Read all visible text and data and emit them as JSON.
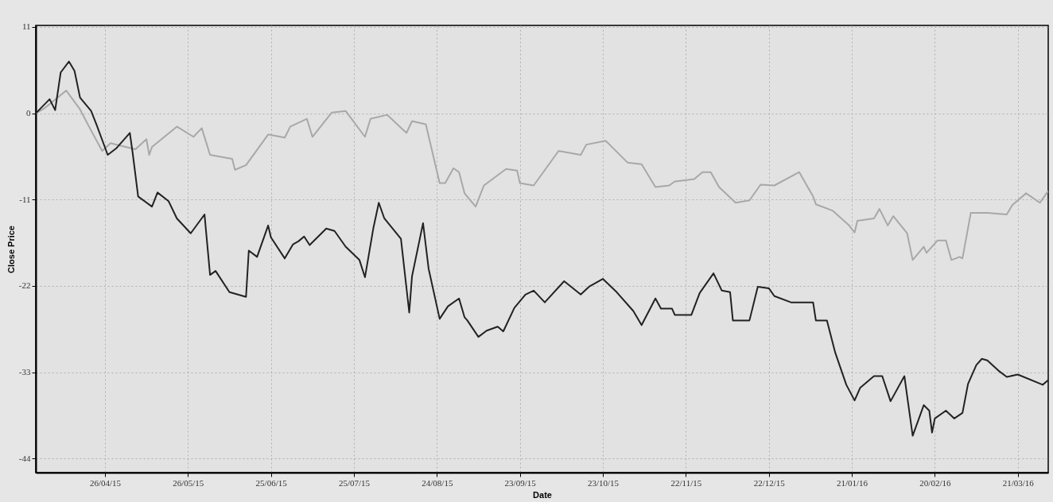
{
  "chart_data": {
    "type": "line",
    "xlabel": "Date",
    "ylabel": "Close Price",
    "xlim": [
      "2015-04-01",
      "2016-04-01"
    ],
    "ylim": [
      -45.8,
      11.2
    ],
    "yticks": [
      11,
      0,
      -11,
      -22,
      -33,
      -44
    ],
    "xticks": [
      {
        "value": "2015-04-26",
        "label": "26/04/15"
      },
      {
        "value": "2015-05-26",
        "label": "26/05/15"
      },
      {
        "value": "2015-06-25",
        "label": "25/06/15"
      },
      {
        "value": "2015-07-25",
        "label": "25/07/15"
      },
      {
        "value": "2015-08-24",
        "label": "24/08/15"
      },
      {
        "value": "2015-09-23",
        "label": "23/09/15"
      },
      {
        "value": "2015-10-23",
        "label": "23/10/15"
      },
      {
        "value": "2015-11-22",
        "label": "22/11/15"
      },
      {
        "value": "2015-12-22",
        "label": "22/12/15"
      },
      {
        "value": "2016-01-21",
        "label": "21/01/16"
      },
      {
        "value": "2016-02-20",
        "label": "20/02/16"
      },
      {
        "value": "2016-03-21",
        "label": "21/03/16"
      }
    ],
    "grid": true,
    "legend": false,
    "line_style": "solid",
    "marker": "none",
    "series": [
      {
        "color": "#a8a8a8",
        "x": [
          "2015-04-01",
          "2015-04-04",
          "2015-04-12",
          "2015-04-17",
          "2015-04-21",
          "2015-04-25",
          "2015-04-28",
          "2015-05-07",
          "2015-05-11",
          "2015-05-12",
          "2015-05-13",
          "2015-05-22",
          "2015-05-28",
          "2015-05-31",
          "2015-06-03",
          "2015-06-11",
          "2015-06-12",
          "2015-06-16",
          "2015-06-24",
          "2015-06-30",
          "2015-07-02",
          "2015-07-08",
          "2015-07-10",
          "2015-07-17",
          "2015-07-22",
          "2015-07-29",
          "2015-07-31",
          "2015-08-06",
          "2015-08-13",
          "2015-08-15",
          "2015-08-20",
          "2015-08-25",
          "2015-08-27",
          "2015-08-30",
          "2015-09-01",
          "2015-09-03",
          "2015-09-07",
          "2015-09-10",
          "2015-09-18",
          "2015-09-22",
          "2015-09-23",
          "2015-09-28",
          "2015-10-07",
          "2015-10-15",
          "2015-10-17",
          "2015-10-24",
          "2015-11-01",
          "2015-11-06",
          "2015-11-11",
          "2015-11-16",
          "2015-11-18",
          "2015-11-25",
          "2015-11-28",
          "2015-12-01",
          "2015-12-04",
          "2015-12-10",
          "2015-12-15",
          "2015-12-19",
          "2015-12-24",
          "2016-01-02",
          "2016-01-07",
          "2016-01-08",
          "2016-01-14",
          "2016-01-20",
          "2016-01-22",
          "2016-01-23",
          "2016-01-29",
          "2016-01-31",
          "2016-02-03",
          "2016-02-05",
          "2016-02-10",
          "2016-02-12",
          "2016-02-16",
          "2016-02-17",
          "2016-02-21",
          "2016-02-24",
          "2016-02-26",
          "2016-02-29",
          "2016-03-01",
          "2016-03-04",
          "2016-03-10",
          "2016-03-17",
          "2016-03-19",
          "2016-03-24",
          "2016-03-29",
          "2016-04-01"
        ],
        "values": [
          0,
          0.6,
          2.9,
          0.5,
          -2.2,
          -4.8,
          -3.8,
          -4.6,
          -3.3,
          -5.3,
          -4.3,
          -1.7,
          -3.0,
          -1.9,
          -5.3,
          -5.8,
          -7.2,
          -6.6,
          -2.7,
          -3.1,
          -1.7,
          -0.7,
          -3.0,
          0.1,
          0.3,
          -3.0,
          -0.7,
          -0.2,
          -2.5,
          -1.0,
          -1.4,
          -8.9,
          -8.9,
          -7.0,
          -7.5,
          -10.2,
          -11.9,
          -9.2,
          -7.1,
          -7.3,
          -8.9,
          -9.2,
          -4.8,
          -5.3,
          -4.0,
          -3.5,
          -6.3,
          -6.5,
          -9.4,
          -9.2,
          -8.7,
          -8.4,
          -7.5,
          -7.5,
          -9.4,
          -11.4,
          -11.1,
          -9.1,
          -9.2,
          -7.5,
          -10.6,
          -11.6,
          -12.4,
          -14.3,
          -15.2,
          -13.7,
          -13.4,
          -12.2,
          -14.3,
          -13.1,
          -15.3,
          -18.7,
          -17.0,
          -17.8,
          -16.2,
          -16.2,
          -18.7,
          -18.3,
          -18.5,
          -12.7,
          -12.7,
          -12.9,
          -11.7,
          -10.2,
          -11.4,
          -9.9
        ]
      },
      {
        "color": "#222222",
        "x": [
          "2015-04-01",
          "2015-04-06",
          "2015-04-08",
          "2015-04-10",
          "2015-04-13",
          "2015-04-15",
          "2015-04-17",
          "2015-04-21",
          "2015-04-23",
          "2015-04-27",
          "2015-04-30",
          "2015-05-05",
          "2015-05-06",
          "2015-05-08",
          "2015-05-13",
          "2015-05-15",
          "2015-05-19",
          "2015-05-22",
          "2015-05-27",
          "2015-06-01",
          "2015-06-03",
          "2015-06-05",
          "2015-06-10",
          "2015-06-16",
          "2015-06-17",
          "2015-06-20",
          "2015-06-24",
          "2015-06-25",
          "2015-06-30",
          "2015-07-03",
          "2015-07-05",
          "2015-07-07",
          "2015-07-09",
          "2015-07-15",
          "2015-07-18",
          "2015-07-22",
          "2015-07-27",
          "2015-07-29",
          "2015-08-01",
          "2015-08-03",
          "2015-08-05",
          "2015-08-11",
          "2015-08-14",
          "2015-08-15",
          "2015-08-19",
          "2015-08-21",
          "2015-08-25",
          "2015-08-28",
          "2015-09-01",
          "2015-09-03",
          "2015-09-04",
          "2015-09-08",
          "2015-09-11",
          "2015-09-15",
          "2015-09-17",
          "2015-09-21",
          "2015-09-25",
          "2015-09-28",
          "2015-10-02",
          "2015-10-09",
          "2015-10-15",
          "2015-10-18",
          "2015-10-23",
          "2015-10-28",
          "2015-11-03",
          "2015-11-06",
          "2015-11-11",
          "2015-11-13",
          "2015-11-17",
          "2015-11-18",
          "2015-11-24",
          "2015-11-27",
          "2015-12-02",
          "2015-12-05",
          "2015-12-08",
          "2015-12-09",
          "2015-12-15",
          "2015-12-18",
          "2015-12-22",
          "2015-12-24",
          "2015-12-30",
          "2016-01-07",
          "2016-01-08",
          "2016-01-12",
          "2016-01-15",
          "2016-01-19",
          "2016-01-22",
          "2016-01-24",
          "2016-01-29",
          "2016-02-01",
          "2016-02-04",
          "2016-02-09",
          "2016-02-12",
          "2016-02-16",
          "2016-02-18",
          "2016-02-19",
          "2016-02-20",
          "2016-02-24",
          "2016-02-27",
          "2016-03-01",
          "2016-03-03",
          "2016-03-06",
          "2016-03-08",
          "2016-03-10",
          "2016-03-14",
          "2016-03-17",
          "2016-03-21",
          "2016-03-30",
          "2016-04-01"
        ],
        "values": [
          0,
          1.8,
          0.4,
          5.2,
          6.6,
          5.4,
          2.0,
          0.3,
          -1.5,
          -5.3,
          -4.5,
          -2.5,
          -5.0,
          -10.6,
          -11.9,
          -10.1,
          -11.2,
          -13.4,
          -15.3,
          -12.9,
          -20.6,
          -20.1,
          -22.8,
          -23.4,
          -17.5,
          -18.3,
          -14.3,
          -15.8,
          -18.5,
          -16.7,
          -16.3,
          -15.7,
          -16.8,
          -14.7,
          -15.0,
          -17.0,
          -18.7,
          -20.9,
          -14.7,
          -11.4,
          -13.4,
          -16.0,
          -25.4,
          -20.8,
          -14.0,
          -19.8,
          -26.2,
          -24.6,
          -23.6,
          -26.0,
          -26.4,
          -28.5,
          -27.7,
          -27.2,
          -27.8,
          -24.8,
          -23.1,
          -22.6,
          -24.1,
          -21.4,
          -23.1,
          -22.1,
          -21.1,
          -22.8,
          -25.2,
          -27.0,
          -23.6,
          -24.9,
          -24.9,
          -25.7,
          -25.7,
          -22.9,
          -20.4,
          -22.6,
          -22.8,
          -26.4,
          -26.4,
          -22.1,
          -22.3,
          -23.3,
          -24.1,
          -24.1,
          -26.4,
          -26.4,
          -30.5,
          -34.6,
          -36.6,
          -35.0,
          -33.5,
          -33.5,
          -36.7,
          -33.5,
          -41.1,
          -37.2,
          -37.9,
          -40.7,
          -38.9,
          -37.9,
          -38.9,
          -38.2,
          -34.5,
          -32.1,
          -31.3,
          -31.5,
          -32.8,
          -33.6,
          -33.3,
          -34.6,
          -34.0
        ]
      }
    ]
  }
}
